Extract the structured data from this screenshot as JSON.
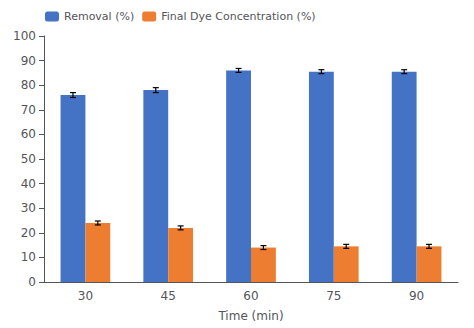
{
  "chart_data": {
    "type": "bar",
    "categories": [
      30,
      45,
      60,
      75,
      90
    ],
    "series": [
      {
        "name": "Removal (%)",
        "color": "#4472C4",
        "values": [
          76,
          78,
          86,
          85.5,
          85.5
        ],
        "errors": [
          1.0,
          1.0,
          0.8,
          0.8,
          0.8
        ]
      },
      {
        "name": "Final Dye Concentration (%)",
        "color": "#ED7D31",
        "values": [
          24,
          22,
          14,
          14.5,
          14.5
        ],
        "errors": [
          0.8,
          0.8,
          0.8,
          0.8,
          0.8
        ]
      }
    ],
    "xlabel": "Time (min)",
    "ylim": [
      0,
      100
    ],
    "yticks": [
      0,
      10,
      20,
      30,
      40,
      50,
      60,
      70,
      80,
      90,
      100
    ],
    "grid": false,
    "legend": "upper left"
  }
}
